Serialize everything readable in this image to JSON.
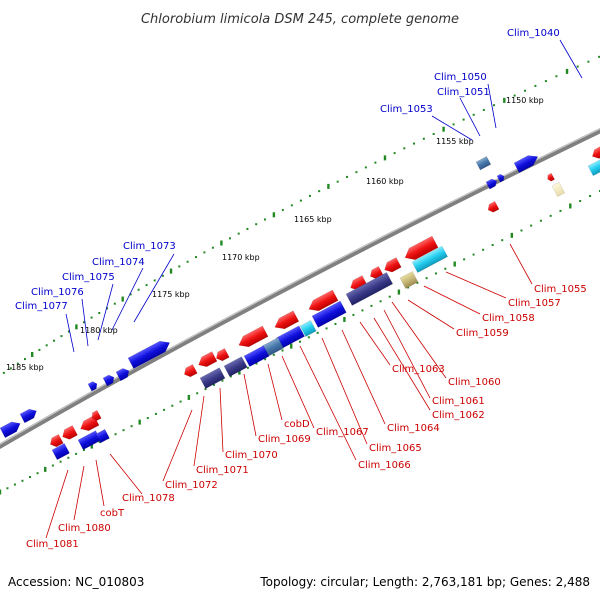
{
  "title": "Chlorobium limicola DSM 245, complete genome",
  "footer": {
    "accession": "Accession: NC_010803",
    "summary": "Topology: circular; Length: 2,763,181 bp; Genes: 2,488"
  },
  "ticks": [
    "1150 kbp",
    "1155 kbp",
    "1160 kbp",
    "1165 kbp",
    "1170 kbp",
    "1175 kbp",
    "1180 kbp",
    "1185 kbp"
  ],
  "labels_top": [
    "Clim_1040",
    "Clim_1050",
    "Clim_1051",
    "Clim_1053",
    "Clim_1073",
    "Clim_1074",
    "Clim_1075",
    "Clim_1076",
    "Clim_1077"
  ],
  "labels_bottom": [
    "Clim_1055",
    "Clim_1057",
    "Clim_1058",
    "Clim_1059",
    "Clim_1060",
    "Clim_1061",
    "Clim_1062",
    "Clim_1063",
    "Clim_1064",
    "Clim_1065",
    "Clim_1066",
    "Clim_1067",
    "cobD",
    "Clim_1069",
    "Clim_1070",
    "Clim_1071",
    "Clim_1072",
    "Clim_1078",
    "cobT",
    "Clim_1080",
    "Clim_1081"
  ],
  "colors": {
    "forward": "#1010dd",
    "reverse": "#ee1111",
    "label_top": "#0000cc",
    "label_bottom": "#cc0000",
    "backbone": "#808080",
    "tick": "#228822"
  }
}
